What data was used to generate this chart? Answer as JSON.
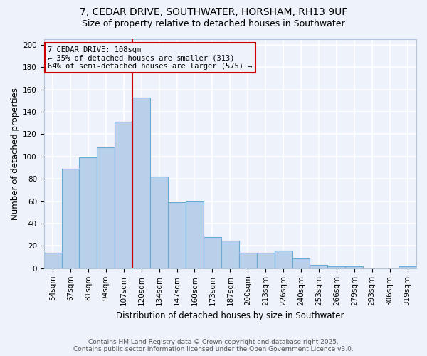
{
  "title1": "7, CEDAR DRIVE, SOUTHWATER, HORSHAM, RH13 9UF",
  "title2": "Size of property relative to detached houses in Southwater",
  "xlabel": "Distribution of detached houses by size in Southwater",
  "ylabel": "Number of detached properties",
  "categories": [
    "54sqm",
    "67sqm",
    "81sqm",
    "94sqm",
    "107sqm",
    "120sqm",
    "134sqm",
    "147sqm",
    "160sqm",
    "173sqm",
    "187sqm",
    "200sqm",
    "213sqm",
    "226sqm",
    "240sqm",
    "253sqm",
    "266sqm",
    "279sqm",
    "293sqm",
    "306sqm",
    "319sqm"
  ],
  "values": [
    14,
    89,
    99,
    108,
    131,
    153,
    82,
    59,
    60,
    28,
    25,
    14,
    14,
    16,
    9,
    3,
    2,
    2,
    0,
    0,
    2
  ],
  "bar_color": "#b8d0ea",
  "bar_edge_color": "#6aaad4",
  "vline_color": "#cc0000",
  "vline_x": 4.5,
  "annotation_title": "7 CEDAR DRIVE: 108sqm",
  "annotation_line1": "← 35% of detached houses are smaller (313)",
  "annotation_line2": "64% of semi-detached houses are larger (575) →",
  "annotation_box_color": "#cc0000",
  "ylim": [
    0,
    205
  ],
  "yticks": [
    0,
    20,
    40,
    60,
    80,
    100,
    120,
    140,
    160,
    180,
    200
  ],
  "background_color": "#eef2fa",
  "grid_color": "#ffffff",
  "footer1": "Contains HM Land Registry data © Crown copyright and database right 2025.",
  "footer2": "Contains public sector information licensed under the Open Government Licence v3.0.",
  "title_fontsize": 10,
  "subtitle_fontsize": 9,
  "annotation_fontsize": 7.5,
  "axis_label_fontsize": 8.5,
  "tick_fontsize": 7.5,
  "footer_fontsize": 6.5,
  "bar_width": 1.0
}
